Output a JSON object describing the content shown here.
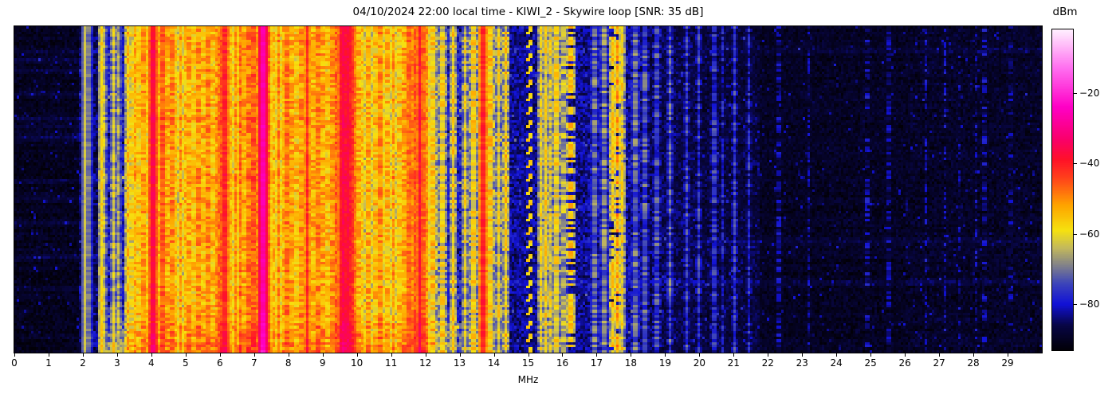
{
  "chart": {
    "title": "04/10/2024 22:00 local time - KIWI_2 - Skywire loop [SNR: 35 dB]",
    "xlabel": "MHz",
    "colorbar_label": "dBm"
  },
  "chart_data": {
    "type": "heatmap",
    "subtype": "radio-spectrogram-waterfall",
    "title": "04/10/2024 22:00 local time - KIWI_2 - Skywire loop [SNR: 35 dB]",
    "xlabel": "MHz",
    "x_range": [
      0,
      30
    ],
    "x_ticks": [
      0,
      1,
      2,
      3,
      4,
      5,
      6,
      7,
      8,
      9,
      10,
      11,
      12,
      13,
      14,
      15,
      16,
      17,
      18,
      19,
      20,
      21,
      22,
      23,
      24,
      25,
      26,
      27,
      28,
      29
    ],
    "grid": false,
    "colorbar": {
      "label": "dBm",
      "ticks": [
        -20,
        -40,
        -60,
        -80
      ],
      "tick_labels": [
        "−20",
        "−40",
        "−60",
        "−80"
      ],
      "vmax": -2,
      "vmin": -93
    },
    "colormap_stops": [
      [
        -93,
        2,
        0,
        8
      ],
      [
        -86,
        8,
        6,
        70
      ],
      [
        -80,
        18,
        18,
        215
      ],
      [
        -74,
        62,
        70,
        185
      ],
      [
        -69,
        130,
        130,
        138
      ],
      [
        -64,
        196,
        186,
        92
      ],
      [
        -59,
        246,
        226,
        16
      ],
      [
        -52,
        255,
        165,
        0
      ],
      [
        -44,
        255,
        64,
        28
      ],
      [
        -39,
        255,
        18,
        40
      ],
      [
        -33,
        250,
        0,
        108
      ],
      [
        -24,
        255,
        0,
        198
      ],
      [
        -13,
        255,
        110,
        240
      ],
      [
        -2,
        255,
        240,
        255
      ]
    ],
    "noise": {
      "hot_pixel_prob": 0.045,
      "hot_pixel_boost": 9
    },
    "bands": [
      [
        0,
        1.85,
        -90.5,
        3.5,
        1.0
      ],
      [
        1.85,
        2.48,
        -86,
        5,
        1.5
      ],
      [
        2.48,
        3.25,
        -80,
        8,
        2.0
      ],
      [
        3.25,
        4.78,
        -74,
        12,
        2.5
      ],
      [
        4.78,
        5.9,
        -76,
        11,
        2.5
      ],
      [
        5.9,
        6.35,
        -70,
        12,
        2.5
      ],
      [
        6.35,
        7.15,
        -72,
        12,
        2.5
      ],
      [
        7.15,
        7.65,
        -69,
        13,
        2.5
      ],
      [
        7.65,
        8.75,
        -74,
        12,
        2.5
      ],
      [
        8.75,
        9.45,
        -73,
        12,
        2.5
      ],
      [
        9.45,
        9.95,
        -62,
        11,
        3.0
      ],
      [
        9.95,
        10.25,
        -72,
        11,
        2.5
      ],
      [
        10.25,
        11.45,
        -71,
        12,
        2.5
      ],
      [
        11.45,
        12.1,
        -65,
        10,
        3.0
      ],
      [
        12.1,
        13.1,
        -79,
        8,
        2.0
      ],
      [
        13.1,
        14.45,
        -80,
        8,
        2.0
      ],
      [
        14.45,
        16.45,
        -83,
        6,
        1.5
      ],
      [
        16.45,
        18.3,
        -83,
        6.5,
        1.5
      ],
      [
        18.3,
        19.9,
        -86,
        5,
        1.2
      ],
      [
        19.9,
        21.8,
        -87.5,
        4.5,
        1.0
      ],
      [
        21.8,
        26,
        -90,
        3.5,
        0.8
      ],
      [
        26,
        30,
        -89.5,
        4,
        0.8
      ]
    ],
    "carriers": [
      [
        2.07,
        0.03,
        -63,
        0.1,
        1
      ],
      [
        2.16,
        0.025,
        -70,
        0.2,
        1
      ],
      [
        2.55,
        0.03,
        -58,
        0.3,
        1
      ],
      [
        2.63,
        0.025,
        -64,
        0.4,
        1
      ],
      [
        2.88,
        0.03,
        -62,
        0.4,
        1
      ],
      [
        3.05,
        0.025,
        -66,
        0.4,
        1
      ],
      [
        3.33,
        0.03,
        -56,
        0.5,
        1
      ],
      [
        3.41,
        0.03,
        -60,
        0.5,
        1
      ],
      [
        3.52,
        0.035,
        -53,
        0.4,
        1
      ],
      [
        3.64,
        0.03,
        -57,
        0.5,
        1
      ],
      [
        3.76,
        0.03,
        -52,
        0.4,
        1
      ],
      [
        3.85,
        0.03,
        -58,
        0.5,
        1
      ],
      [
        3.96,
        0.035,
        -50,
        0.35,
        1
      ],
      [
        4.04,
        0.03,
        -37,
        0.2,
        1
      ],
      [
        4.19,
        0.03,
        -55,
        0.5,
        1
      ],
      [
        4.33,
        0.04,
        -46,
        0.3,
        1
      ],
      [
        4.47,
        0.03,
        -54,
        0.5,
        1
      ],
      [
        4.6,
        0.03,
        -50,
        0.4,
        1
      ],
      [
        4.72,
        0.03,
        -57,
        0.5,
        1
      ],
      [
        4.85,
        0.03,
        -52,
        0.45,
        1
      ],
      [
        4.97,
        0.03,
        -55,
        0.5,
        1
      ],
      [
        5.09,
        0.03,
        -53,
        0.45,
        1
      ],
      [
        5.22,
        0.03,
        -57,
        0.5,
        1
      ],
      [
        5.36,
        0.035,
        -51,
        0.4,
        1
      ],
      [
        5.51,
        0.03,
        -55,
        0.5,
        1
      ],
      [
        5.65,
        0.03,
        -50,
        0.4,
        1
      ],
      [
        5.79,
        0.03,
        -56,
        0.5,
        1
      ],
      [
        5.88,
        0.03,
        -52,
        0.45,
        1
      ],
      [
        5.96,
        0.04,
        -48,
        0.3,
        1
      ],
      [
        6.02,
        0.035,
        -51,
        0.35,
        1
      ],
      [
        6.08,
        0.04,
        -46,
        0.3,
        1
      ],
      [
        6.14,
        0.04,
        -41,
        0.25,
        1
      ],
      [
        6.19,
        0.035,
        -49,
        0.3,
        1
      ],
      [
        6.26,
        0.03,
        -52,
        0.4,
        1
      ],
      [
        6.32,
        0.03,
        -55,
        0.45,
        1
      ],
      [
        6.45,
        0.03,
        -51,
        0.4,
        1
      ],
      [
        6.58,
        0.035,
        -48,
        0.4,
        1
      ],
      [
        6.71,
        0.03,
        -53,
        0.45,
        1
      ],
      [
        6.84,
        0.03,
        -49,
        0.4,
        1
      ],
      [
        6.97,
        0.035,
        -46,
        0.35,
        1
      ],
      [
        7.09,
        0.03,
        -50,
        0.4,
        1
      ],
      [
        7.2,
        0.04,
        -45,
        0.3,
        1
      ],
      [
        7.255,
        0.07,
        -27,
        0.12,
        1
      ],
      [
        7.31,
        0.04,
        -44,
        0.3,
        1
      ],
      [
        7.38,
        0.035,
        -48,
        0.35,
        1
      ],
      [
        7.44,
        0.03,
        -52,
        0.4,
        1
      ],
      [
        7.57,
        0.03,
        -55,
        0.45,
        1
      ],
      [
        7.71,
        0.03,
        -50,
        0.4,
        1
      ],
      [
        7.84,
        0.03,
        -54,
        0.45,
        1
      ],
      [
        7.97,
        0.035,
        -49,
        0.4,
        1
      ],
      [
        8.1,
        0.03,
        -53,
        0.45,
        1
      ],
      [
        8.24,
        0.03,
        -56,
        0.5,
        1
      ],
      [
        8.38,
        0.03,
        -51,
        0.4,
        1
      ],
      [
        8.47,
        0.03,
        -55,
        0.45,
        1
      ],
      [
        8.56,
        0.04,
        -42,
        0.25,
        1
      ],
      [
        8.72,
        0.03,
        -54,
        0.45,
        1
      ],
      [
        8.87,
        0.03,
        -50,
        0.4,
        1
      ],
      [
        9.0,
        0.03,
        -53,
        0.45,
        1
      ],
      [
        9.13,
        0.03,
        -56,
        0.5,
        1
      ],
      [
        9.28,
        0.03,
        -51,
        0.4,
        1
      ],
      [
        9.4,
        0.035,
        -47,
        0.35,
        1
      ],
      [
        9.53,
        0.05,
        -39,
        0.2,
        1
      ],
      [
        9.6,
        0.05,
        -36,
        0.18,
        1
      ],
      [
        9.66,
        0.05,
        -38,
        0.2,
        1
      ],
      [
        9.73,
        0.05,
        -37,
        0.18,
        1
      ],
      [
        9.8,
        0.045,
        -40,
        0.22,
        1
      ],
      [
        9.87,
        0.04,
        -43,
        0.25,
        1
      ],
      [
        9.95,
        0.035,
        -49,
        0.35,
        1
      ],
      [
        10.05,
        0.03,
        -54,
        0.45,
        1
      ],
      [
        10.14,
        0.03,
        -57,
        0.5,
        1
      ],
      [
        10.33,
        0.03,
        -53,
        0.45,
        1
      ],
      [
        10.52,
        0.03,
        -56,
        0.5,
        1
      ],
      [
        10.67,
        0.03,
        -51,
        0.45,
        1
      ],
      [
        10.87,
        0.03,
        -55,
        0.5,
        1
      ],
      [
        11.06,
        0.03,
        -52,
        0.45,
        1
      ],
      [
        11.22,
        0.03,
        -56,
        0.5,
        1
      ],
      [
        11.37,
        0.03,
        -53,
        0.45,
        1
      ],
      [
        11.52,
        0.04,
        -48,
        0.3,
        1
      ],
      [
        11.6,
        0.04,
        -50,
        0.35,
        1
      ],
      [
        11.7,
        0.04,
        -46,
        0.3,
        1
      ],
      [
        11.83,
        0.04,
        -39,
        0.2,
        1
      ],
      [
        11.93,
        0.04,
        -47,
        0.3,
        1
      ],
      [
        12.02,
        0.035,
        -51,
        0.35,
        1
      ],
      [
        12.2,
        0.03,
        -57,
        0.5,
        1
      ],
      [
        12.49,
        0.03,
        -60,
        0.5,
        1
      ],
      [
        12.8,
        0.03,
        -58,
        0.5,
        1
      ],
      [
        13.16,
        0.03,
        -61,
        0.5,
        1
      ],
      [
        13.39,
        0.03,
        -59,
        0.5,
        1
      ],
      [
        13.67,
        0.04,
        -41,
        0.25,
        1
      ],
      [
        13.88,
        0.03,
        -57,
        0.5,
        1
      ],
      [
        14.12,
        0.03,
        -60,
        0.5,
        1
      ],
      [
        14.32,
        0.03,
        -58,
        0.55,
        1
      ],
      [
        15.38,
        0.03,
        -61,
        0.5,
        1
      ],
      [
        15.53,
        0.03,
        -59,
        0.5,
        1
      ],
      [
        15.67,
        0.03,
        -62,
        0.55,
        1
      ],
      [
        15.83,
        0.03,
        -60,
        0.5,
        1
      ],
      [
        16.05,
        0.03,
        -66,
        0.5,
        1
      ],
      [
        16.27,
        0.045,
        -55,
        0.3,
        0.6
      ],
      [
        16.95,
        0.03,
        -72,
        0.5,
        1
      ],
      [
        17.22,
        0.03,
        -70,
        0.5,
        1
      ],
      [
        17.49,
        0.035,
        -57,
        0.45,
        0.9
      ],
      [
        17.62,
        0.035,
        -52,
        0.4,
        0.8
      ],
      [
        17.76,
        0.03,
        -60,
        0.5,
        1
      ],
      [
        18.13,
        0.03,
        -72,
        0.5,
        1
      ],
      [
        18.42,
        0.03,
        -74,
        0.5,
        1
      ],
      [
        18.78,
        0.03,
        -75,
        0.5,
        1
      ],
      [
        19.16,
        0.03,
        -74,
        0.55,
        1
      ],
      [
        19.62,
        0.03,
        -76,
        0.5,
        1
      ],
      [
        19.97,
        0.03,
        -77,
        0.5,
        1
      ],
      [
        20.44,
        0.03,
        -78,
        0.5,
        1
      ],
      [
        20.7,
        0.03,
        -80,
        0.5,
        1
      ],
      [
        21.02,
        0.03,
        -76,
        0.4,
        1
      ],
      [
        21.47,
        0.03,
        -79,
        0.5,
        1
      ],
      [
        22.32,
        0.03,
        -85,
        0.5,
        1
      ],
      [
        23.2,
        0.03,
        -86,
        0.5,
        1
      ],
      [
        24.92,
        0.03,
        -84,
        0.5,
        0.7
      ],
      [
        25.52,
        0.03,
        -86,
        0.5,
        1
      ],
      [
        26.62,
        0.035,
        -82,
        0.4,
        0.55
      ],
      [
        27.18,
        0.03,
        -82,
        0.4,
        0.5
      ],
      [
        27.6,
        0.025,
        -85,
        0.5,
        0.6
      ],
      [
        28.08,
        0.035,
        -83,
        0.4,
        0.55
      ],
      [
        28.33,
        0.03,
        -84,
        0.5,
        0.6
      ],
      [
        29.1,
        0.025,
        -87,
        0.5,
        0.7
      ]
    ],
    "streaks": [
      [
        0.07,
        0,
        30,
        3
      ],
      [
        0.1,
        0,
        1.85,
        4
      ],
      [
        0.135,
        0,
        2.5,
        4
      ],
      [
        0.205,
        0,
        1.85,
        4
      ],
      [
        0.28,
        0,
        12.1,
        5
      ],
      [
        0.3,
        0,
        13.1,
        3.5
      ],
      [
        0.335,
        0,
        1.85,
        5
      ],
      [
        0.455,
        1.9,
        12.1,
        7
      ],
      [
        0.47,
        0,
        14.4,
        3.5
      ],
      [
        0.525,
        0,
        1.85,
        4
      ],
      [
        0.6,
        0,
        2.5,
        3.5
      ],
      [
        0.655,
        12.1,
        30,
        3
      ],
      [
        0.7,
        0,
        2.5,
        4
      ],
      [
        0.78,
        12.1,
        30,
        3.5
      ],
      [
        0.8,
        0,
        13,
        3
      ],
      [
        0.88,
        2.4,
        9,
        5
      ],
      [
        0.915,
        2.4,
        13.2,
        7
      ],
      [
        0.945,
        2.3,
        13.2,
        9
      ],
      [
        0.97,
        2.3,
        12.6,
        8
      ],
      [
        0.99,
        2.5,
        12,
        8
      ]
    ],
    "dashed_diagonal": {
      "f_start": 15.0,
      "f_step": 0.045,
      "cycle_rows": 5,
      "dash_rows": 3,
      "width": 0.05,
      "level": -57
    },
    "bottom_noise": {
      "y_frac": 0.86,
      "f0": 2.4,
      "f1": 13.2,
      "boost": 9,
      "edge_soft": 0.5
    }
  }
}
